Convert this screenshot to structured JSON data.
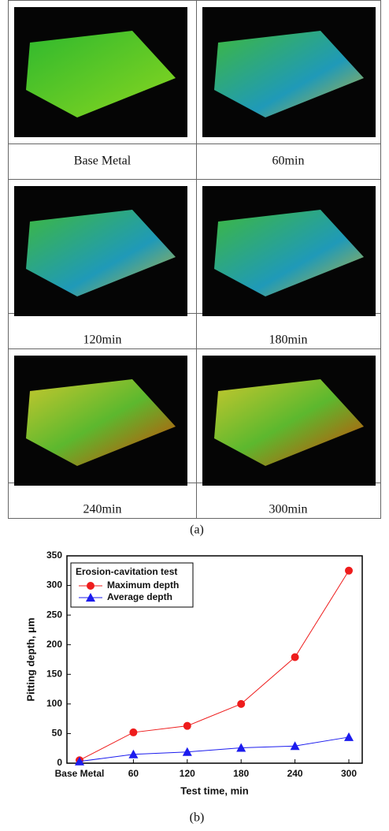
{
  "table": {
    "rows": [
      [
        "Base  Metal",
        "60min"
      ],
      [
        "120min",
        "180min"
      ],
      [
        "240min",
        "300min"
      ]
    ],
    "caption": "(a)"
  },
  "chart_data": {
    "type": "line",
    "categories": [
      "Base Metal",
      "60",
      "120",
      "180",
      "240",
      "300"
    ],
    "series": [
      {
        "name": "Maximum depth",
        "color": "#ee1c1c",
        "marker": "circle",
        "values": [
          5,
          52,
          63,
          100,
          179,
          325
        ]
      },
      {
        "name": "Average depth",
        "color": "#1c1cee",
        "marker": "triangle",
        "values": [
          3,
          15,
          19,
          26,
          29,
          44
        ]
      }
    ],
    "legend_title": "Erosion-cavitation test",
    "legend": "upper left",
    "xlabel": "Test time, min",
    "ylabel": "Pitting depth, μm",
    "ylim": [
      0,
      350
    ],
    "yticks": [
      0,
      50,
      100,
      150,
      200,
      250,
      300,
      350
    ]
  },
  "caption_b": "(b)"
}
